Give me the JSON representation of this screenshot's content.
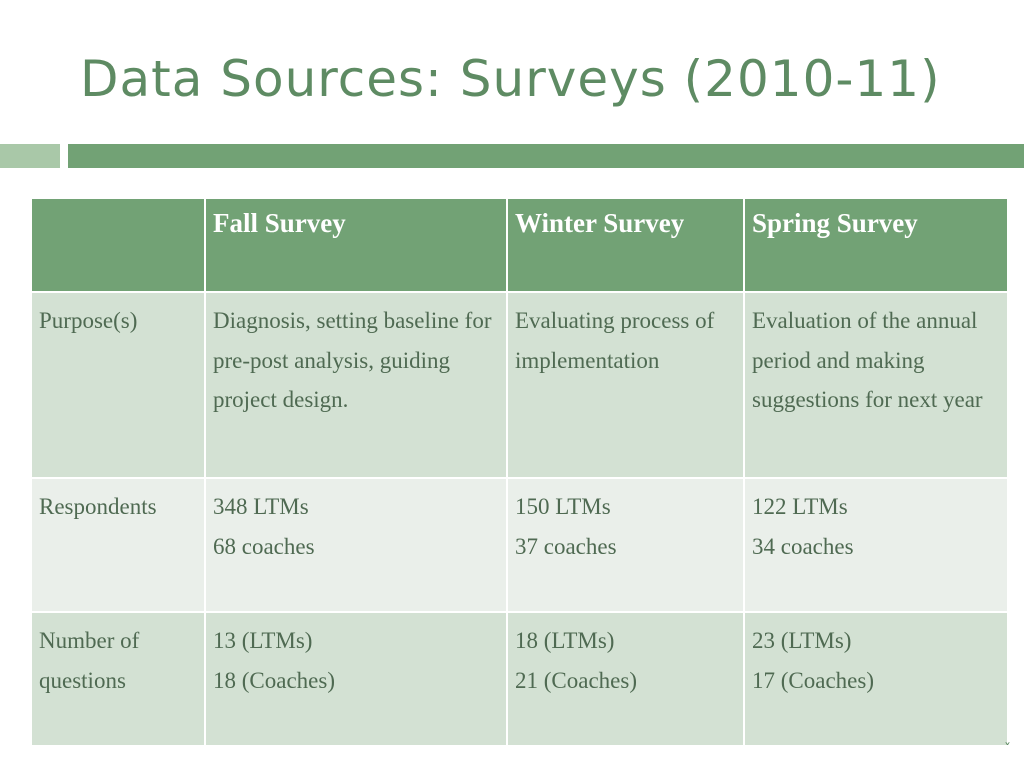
{
  "title": "Data Sources: Surveys (2010-11)",
  "colors": {
    "title": "#5e8b63",
    "header_bg": "#72a275",
    "row_dark": "#d3e1d3",
    "row_light": "#eaefea",
    "accent_light": "#a9c8a8"
  },
  "table": {
    "headers": [
      "",
      "Fall Survey",
      "Winter Survey",
      "Spring Survey"
    ],
    "rows": [
      {
        "label": "Purpose(s)",
        "cells": [
          [
            "Diagnosis, setting baseline for pre-post analysis, guiding project design."
          ],
          [
            "Evaluating process of implementation"
          ],
          [
            "Evaluation of the annual period and making suggestions for next year"
          ]
        ]
      },
      {
        "label": "Respondents",
        "cells": [
          [
            "348 LTMs",
            "68 coaches"
          ],
          [
            "150 LTMs",
            "37 coaches"
          ],
          [
            "122 LTMs",
            "34 coaches"
          ]
        ]
      },
      {
        "label": "Number of questions",
        "cells": [
          [
            "13 (LTMs)",
            "18 (Coaches)"
          ],
          [
            "18 (LTMs)",
            "21 (Coaches)"
          ],
          [
            "23 (LTMs)",
            "17 (Coaches)"
          ]
        ]
      }
    ]
  }
}
